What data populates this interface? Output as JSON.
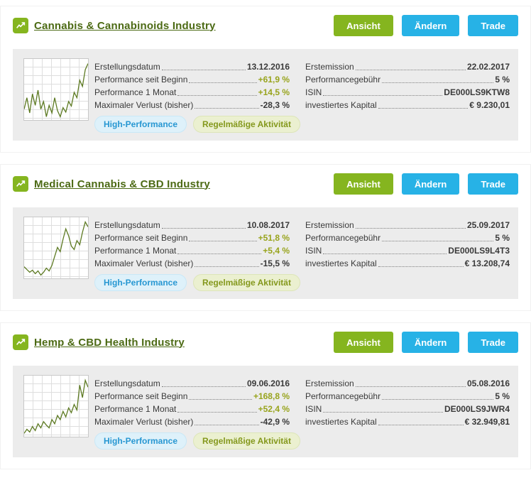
{
  "colors": {
    "brand_green": "#85b51f",
    "brand_blue": "#27b2e6",
    "title_green": "#4c6a14",
    "positive_green": "#98a41d",
    "text_dark": "#3a3a3a",
    "panel_gray": "#ececec",
    "badge_blue_bg": "#def1fa",
    "badge_blue_text": "#2797d2",
    "badge_green_bg": "#ebf0d0",
    "badge_green_text": "#84981c",
    "spark_line": "#5d7a22"
  },
  "actions": {
    "view": "Ansicht",
    "edit": "Ändern",
    "trade": "Trade"
  },
  "cards": [
    {
      "title": "Cannabis & Cannabinoids Industry",
      "left": [
        {
          "label": "Erstellungsdatum",
          "value": "13.12.2016"
        },
        {
          "label": "Performance seit Beginn",
          "value": "+61,9 %"
        },
        {
          "label": "Performance 1 Monat",
          "value": "+14,5 %"
        },
        {
          "label": "Maximaler Verlust (bisher)",
          "value": "-28,3 %"
        }
      ],
      "badges": [
        "High-Performance",
        "Regelmäßige Aktivität"
      ],
      "right": [
        {
          "label": "Erstemission",
          "value": "22.02.2017"
        },
        {
          "label": "Performancegebühr",
          "value": "5 %"
        },
        {
          "label": "ISIN",
          "value": "DE000LS9KTW8"
        },
        {
          "label": "investiertes Kapital",
          "value": "€ 9.230,01"
        }
      ],
      "sparkline": [
        40,
        55,
        35,
        60,
        45,
        65,
        40,
        50,
        30,
        45,
        35,
        55,
        38,
        30,
        42,
        36,
        50,
        44,
        62,
        55,
        78,
        70,
        92,
        100
      ]
    },
    {
      "title": "Medical Cannabis & CBD Industry",
      "left": [
        {
          "label": "Erstellungsdatum",
          "value": "10.08.2017"
        },
        {
          "label": "Performance seit Beginn",
          "value": "+51,8 %"
        },
        {
          "label": "Performance 1 Monat",
          "value": "+5,4 %"
        },
        {
          "label": "Maximaler Verlust (bisher)",
          "value": "-15,5 %"
        }
      ],
      "badges": [
        "High-Performance",
        "Regelmäßige Aktivität"
      ],
      "right": [
        {
          "label": "Erstemission",
          "value": "25.09.2017"
        },
        {
          "label": "Performancegebühr",
          "value": "5 %"
        },
        {
          "label": "ISIN",
          "value": "DE000LS9L4T3"
        },
        {
          "label": "investiertes Kapital",
          "value": "€ 13.208,74"
        }
      ],
      "sparkline": [
        30,
        26,
        22,
        25,
        20,
        24,
        18,
        22,
        28,
        24,
        32,
        45,
        58,
        52,
        70,
        85,
        75,
        60,
        55,
        68,
        62,
        80,
        95,
        88
      ]
    },
    {
      "title": "Hemp & CBD Health Industry",
      "left": [
        {
          "label": "Erstellungsdatum",
          "value": "09.06.2016"
        },
        {
          "label": "Performance seit Beginn",
          "value": "+168,8 %"
        },
        {
          "label": "Performance 1 Monat",
          "value": "+52,4 %"
        },
        {
          "label": "Maximaler Verlust (bisher)",
          "value": "-42,9 %"
        }
      ],
      "badges": [
        "High-Performance",
        "Regelmäßige Aktivität"
      ],
      "right": [
        {
          "label": "Erstemission",
          "value": "05.08.2016"
        },
        {
          "label": "Performancegebühr",
          "value": "5 %"
        },
        {
          "label": "ISIN",
          "value": "DE000LS9JWR4"
        },
        {
          "label": "investiertes Kapital",
          "value": "€ 32.949,81"
        }
      ],
      "sparkline": [
        18,
        24,
        20,
        28,
        22,
        32,
        26,
        35,
        30,
        26,
        38,
        32,
        44,
        38,
        50,
        42,
        55,
        48,
        60,
        52,
        88,
        70,
        95,
        85
      ]
    }
  ]
}
